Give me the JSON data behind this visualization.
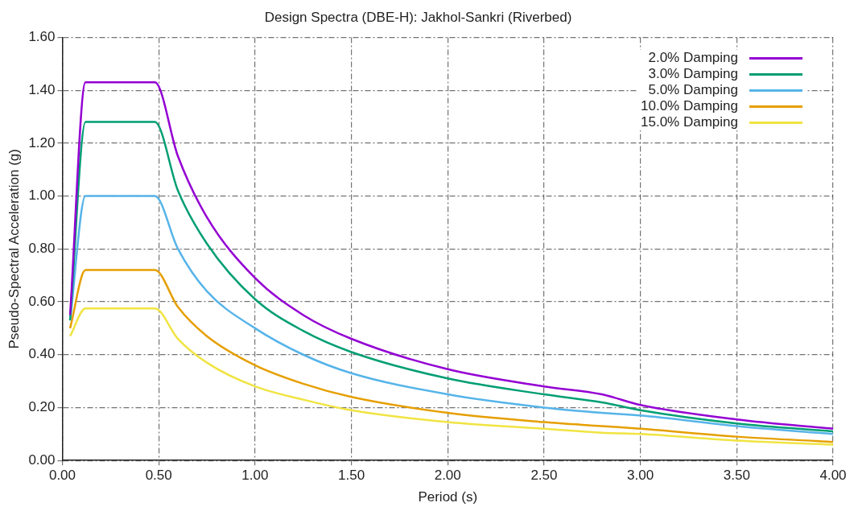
{
  "chart_data": {
    "type": "line",
    "title": "Design Spectra (DBE-H): Jakhol-Sankri (Riverbed)",
    "xlabel": "Period (s)",
    "ylabel": "Pseudo-Spectral Acceleration (g)",
    "x": [
      0.04,
      0.12,
      0.48,
      0.6,
      0.75,
      1.0,
      1.25,
      1.5,
      2.0,
      2.5,
      2.8,
      3.0,
      3.5,
      4.0
    ],
    "series": [
      {
        "name": "2.0% Damping",
        "color": "#9400d3",
        "values": [
          0.55,
          1.43,
          1.43,
          1.15,
          0.92,
          0.69,
          0.55,
          0.46,
          0.345,
          0.28,
          0.25,
          0.21,
          0.155,
          0.12
        ]
      },
      {
        "name": "3.0% Damping",
        "color": "#009e73",
        "values": [
          0.53,
          1.28,
          1.28,
          1.02,
          0.82,
          0.61,
          0.49,
          0.41,
          0.31,
          0.25,
          0.22,
          0.19,
          0.14,
          0.11
        ]
      },
      {
        "name": "5.0% Damping",
        "color": "#56b4e9",
        "values": [
          0.53,
          1.0,
          1.0,
          0.8,
          0.64,
          0.5,
          0.4,
          0.33,
          0.25,
          0.2,
          0.18,
          0.17,
          0.13,
          0.1
        ]
      },
      {
        "name": "10.0% Damping",
        "color": "#e69f00",
        "values": [
          0.5,
          0.72,
          0.72,
          0.58,
          0.47,
          0.36,
          0.29,
          0.24,
          0.18,
          0.145,
          0.13,
          0.12,
          0.09,
          0.07
        ]
      },
      {
        "name": "15.0% Damping",
        "color": "#f0e442",
        "values": [
          0.47,
          0.575,
          0.575,
          0.46,
          0.37,
          0.28,
          0.23,
          0.19,
          0.145,
          0.12,
          0.105,
          0.1,
          0.075,
          0.06
        ]
      }
    ],
    "xlim": [
      0,
      4
    ],
    "xticks": [
      {
        "value": 0,
        "label": "0.00"
      },
      {
        "value": 0.5,
        "label": "0.50"
      },
      {
        "value": 1,
        "label": "1.00"
      },
      {
        "value": 1.5,
        "label": "1.50"
      },
      {
        "value": 2,
        "label": "2.00"
      },
      {
        "value": 2.5,
        "label": "2.50"
      },
      {
        "value": 3,
        "label": "3.00"
      },
      {
        "value": 3.5,
        "label": "3.50"
      },
      {
        "value": 4,
        "label": "4.00"
      }
    ],
    "ylim": [
      0,
      1.6
    ],
    "yticks": [
      {
        "value": 0,
        "label": "0.00"
      },
      {
        "value": 0.2,
        "label": "0.20"
      },
      {
        "value": 0.4,
        "label": "0.40"
      },
      {
        "value": 0.6,
        "label": "0.60"
      },
      {
        "value": 0.8,
        "label": "0.80"
      },
      {
        "value": 1,
        "label": "1.00"
      },
      {
        "value": 1.2,
        "label": "1.20"
      },
      {
        "value": 1.4,
        "label": "1.40"
      },
      {
        "value": 1.6,
        "label": "1.60"
      }
    ],
    "grid": true,
    "legend": "top right",
    "marker": "none",
    "line_style": "solid"
  }
}
